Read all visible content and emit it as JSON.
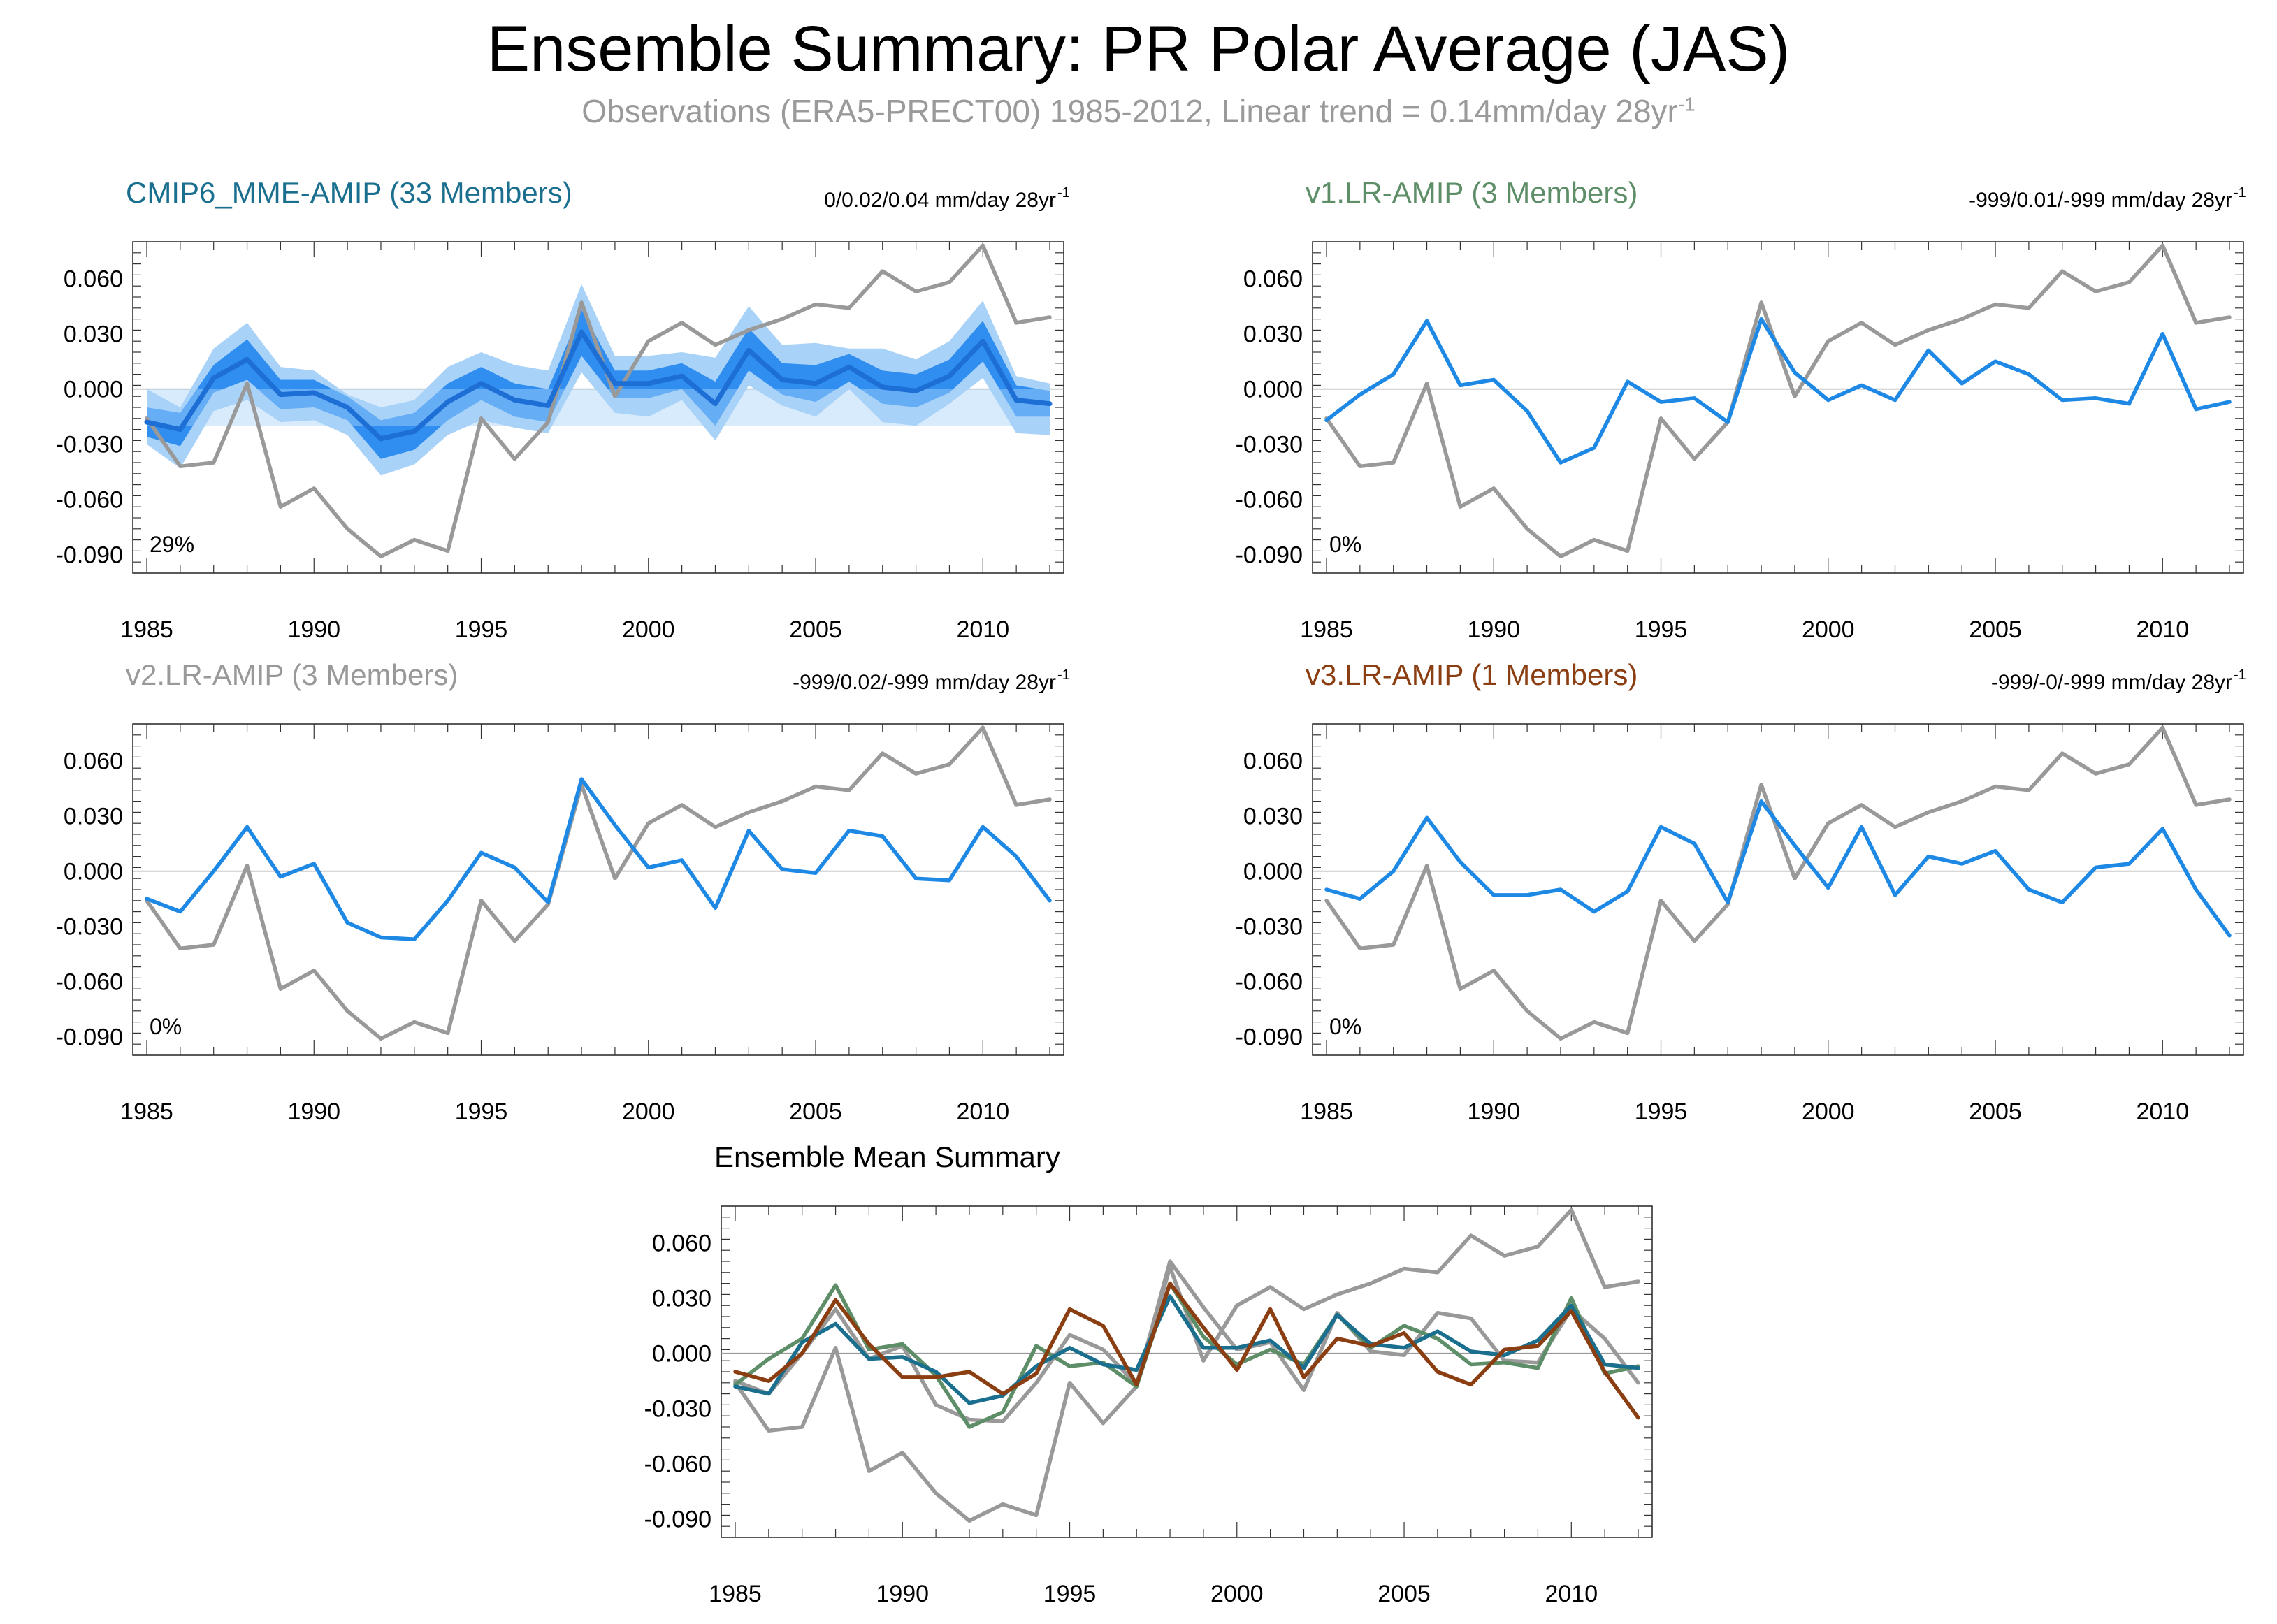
{
  "title": "Ensemble Summary: PR Polar Average (JAS)",
  "subtitle": {
    "text": "Observations (ERA5-PRECT00) 1985-2012, Linear trend = 0.14mm/day 28yr",
    "sup": "-1"
  },
  "colors": {
    "obs": "#999999",
    "model_line": "#1e88e5",
    "band_outer": "#a9d2f8",
    "band_inner": "#2f8ef0",
    "ens_mean": "#1d6fd6",
    "cmip_title": "#1a6e8e",
    "v1_title": "#5e8e68",
    "v2_title": "#999999",
    "v3_title": "#8b3e12"
  },
  "chart_data": [
    {
      "id": "cmip6",
      "type": "line",
      "title": "CMIP6_MME-AMIP (33 Members)",
      "title_color": "#1a6e8e",
      "stats": "0/0.02/0.04 mm/day 28yr",
      "stats_sup": "-1",
      "percent": "29%",
      "x": [
        1985,
        1986,
        1987,
        1988,
        1989,
        1990,
        1991,
        1992,
        1993,
        1994,
        1995,
        1996,
        1997,
        1998,
        1999,
        2000,
        2001,
        2002,
        2003,
        2004,
        2005,
        2006,
        2007,
        2008,
        2009,
        2010,
        2011,
        2012
      ],
      "xticks": [
        "1985",
        "1990",
        "1995",
        "2000",
        "2005",
        "2010"
      ],
      "yticks": [
        "0.060",
        "0.030",
        "0.000",
        "-0.030",
        "-0.060",
        "-0.090"
      ],
      "ylim": [
        -0.1,
        0.08
      ],
      "series": [
        {
          "name": "Observations",
          "color": "#999999",
          "values": [
            -0.016,
            -0.042,
            -0.04,
            0.003,
            -0.064,
            -0.054,
            -0.076,
            -0.091,
            -0.082,
            -0.088,
            -0.016,
            -0.038,
            -0.018,
            0.047,
            -0.004,
            0.026,
            0.036,
            0.024,
            0.032,
            0.038,
            0.046,
            0.044,
            0.064,
            0.053,
            0.058,
            0.078,
            0.036,
            0.039
          ]
        },
        {
          "name": "Ensemble Mean",
          "color": "#1d6fd6",
          "values": [
            -0.018,
            -0.022,
            0.006,
            0.016,
            -0.003,
            -0.002,
            -0.01,
            -0.027,
            -0.023,
            -0.007,
            0.003,
            -0.006,
            -0.009,
            0.031,
            0.003,
            0.003,
            0.007,
            -0.008,
            0.021,
            0.005,
            0.003,
            0.012,
            0.001,
            -0.001,
            0.007,
            0.026,
            -0.006,
            -0.008
          ]
        }
      ],
      "band_outer": {
        "upper": [
          0.0,
          -0.01,
          0.022,
          0.036,
          0.012,
          0.01,
          -0.003,
          -0.01,
          -0.006,
          0.012,
          0.02,
          0.013,
          0.01,
          0.057,
          0.018,
          0.018,
          0.02,
          0.017,
          0.045,
          0.024,
          0.025,
          0.022,
          0.022,
          0.016,
          0.026,
          0.048,
          0.007,
          0.003
        ],
        "lower": [
          -0.03,
          -0.043,
          -0.012,
          -0.006,
          -0.018,
          -0.017,
          -0.025,
          -0.047,
          -0.041,
          -0.025,
          -0.017,
          -0.021,
          -0.024,
          0.009,
          -0.013,
          -0.015,
          -0.006,
          -0.028,
          0.002,
          -0.009,
          -0.015,
          0.0,
          -0.018,
          -0.02,
          -0.008,
          0.006,
          -0.024,
          -0.025
        ]
      },
      "band_inner": {
        "upper": [
          -0.01,
          -0.013,
          0.013,
          0.027,
          0.005,
          0.005,
          -0.004,
          -0.017,
          -0.013,
          0.003,
          0.012,
          0.003,
          0.0,
          0.043,
          0.01,
          0.01,
          0.014,
          0.004,
          0.033,
          0.014,
          0.013,
          0.019,
          0.01,
          0.008,
          0.016,
          0.037,
          0.002,
          -0.001
        ],
        "lower": [
          -0.026,
          -0.031,
          -0.002,
          0.005,
          -0.011,
          -0.01,
          -0.017,
          -0.038,
          -0.033,
          -0.017,
          -0.006,
          -0.015,
          -0.018,
          0.018,
          -0.005,
          -0.005,
          0.0,
          -0.02,
          0.01,
          -0.003,
          -0.007,
          0.004,
          -0.008,
          -0.01,
          -0.002,
          0.015,
          -0.015,
          -0.015
        ]
      }
    },
    {
      "id": "v1",
      "type": "line",
      "title": "v1.LR-AMIP (3 Members)",
      "title_color": "#5e8e68",
      "stats": "-999/0.01/-999 mm/day 28yr",
      "stats_sup": "-1",
      "percent": "0%",
      "x": [
        1985,
        1986,
        1987,
        1988,
        1989,
        1990,
        1991,
        1992,
        1993,
        1994,
        1995,
        1996,
        1997,
        1998,
        1999,
        2000,
        2001,
        2002,
        2003,
        2004,
        2005,
        2006,
        2007,
        2008,
        2009,
        2010,
        2011,
        2012
      ],
      "xticks": [
        "1985",
        "1990",
        "1995",
        "2000",
        "2005",
        "2010"
      ],
      "yticks": [
        "0.060",
        "0.030",
        "0.000",
        "-0.030",
        "-0.060",
        "-0.090"
      ],
      "ylim": [
        -0.1,
        0.08
      ],
      "series": [
        {
          "name": "Observations",
          "color": "#999999",
          "values": [
            -0.016,
            -0.042,
            -0.04,
            0.003,
            -0.064,
            -0.054,
            -0.076,
            -0.091,
            -0.082,
            -0.088,
            -0.016,
            -0.038,
            -0.018,
            0.047,
            -0.004,
            0.026,
            0.036,
            0.024,
            0.032,
            0.038,
            0.046,
            0.044,
            0.064,
            0.053,
            0.058,
            0.078,
            0.036,
            0.039
          ]
        },
        {
          "name": "Ensemble Mean",
          "color": "#1e88e5",
          "values": [
            -0.017,
            -0.003,
            0.008,
            0.037,
            0.002,
            0.005,
            -0.012,
            -0.04,
            -0.032,
            0.004,
            -0.007,
            -0.005,
            -0.018,
            0.038,
            0.009,
            -0.006,
            0.002,
            -0.006,
            0.021,
            0.003,
            0.015,
            0.008,
            -0.006,
            -0.005,
            -0.008,
            0.03,
            -0.011,
            -0.007
          ]
        }
      ]
    },
    {
      "id": "v2",
      "type": "line",
      "title": "v2.LR-AMIP (3 Members)",
      "title_color": "#999999",
      "stats": "-999/0.02/-999 mm/day 28yr",
      "stats_sup": "-1",
      "percent": "0%",
      "x": [
        1985,
        1986,
        1987,
        1988,
        1989,
        1990,
        1991,
        1992,
        1993,
        1994,
        1995,
        1996,
        1997,
        1998,
        1999,
        2000,
        2001,
        2002,
        2003,
        2004,
        2005,
        2006,
        2007,
        2008,
        2009,
        2010,
        2011,
        2012
      ],
      "xticks": [
        "1985",
        "1990",
        "1995",
        "2000",
        "2005",
        "2010"
      ],
      "yticks": [
        "0.060",
        "0.030",
        "0.000",
        "-0.030",
        "-0.060",
        "-0.090"
      ],
      "ylim": [
        -0.1,
        0.08
      ],
      "series": [
        {
          "name": "Observations",
          "color": "#999999",
          "values": [
            -0.016,
            -0.042,
            -0.04,
            0.003,
            -0.064,
            -0.054,
            -0.076,
            -0.091,
            -0.082,
            -0.088,
            -0.016,
            -0.038,
            -0.018,
            0.047,
            -0.004,
            0.026,
            0.036,
            0.024,
            0.032,
            0.038,
            0.046,
            0.044,
            0.064,
            0.053,
            0.058,
            0.078,
            0.036,
            0.039
          ]
        },
        {
          "name": "Ensemble Mean",
          "color": "#1e88e5",
          "values": [
            -0.015,
            -0.022,
            0.0,
            0.024,
            -0.003,
            0.004,
            -0.028,
            -0.036,
            -0.037,
            -0.016,
            0.01,
            0.002,
            -0.017,
            0.05,
            0.025,
            0.002,
            0.006,
            -0.02,
            0.022,
            0.001,
            -0.001,
            0.022,
            0.019,
            -0.004,
            -0.005,
            0.024,
            0.008,
            -0.016
          ]
        }
      ]
    },
    {
      "id": "v3",
      "type": "line",
      "title": "v3.LR-AMIP (1 Members)",
      "title_color": "#8b3e12",
      "stats": "-999/-0/-999 mm/day 28yr",
      "stats_sup": "-1",
      "percent": "0%",
      "x": [
        1985,
        1986,
        1987,
        1988,
        1989,
        1990,
        1991,
        1992,
        1993,
        1994,
        1995,
        1996,
        1997,
        1998,
        1999,
        2000,
        2001,
        2002,
        2003,
        2004,
        2005,
        2006,
        2007,
        2008,
        2009,
        2010,
        2011,
        2012
      ],
      "xticks": [
        "1985",
        "1990",
        "1995",
        "2000",
        "2005",
        "2010"
      ],
      "yticks": [
        "0.060",
        "0.030",
        "0.000",
        "-0.030",
        "-0.060",
        "-0.090"
      ],
      "ylim": [
        -0.1,
        0.08
      ],
      "series": [
        {
          "name": "Observations",
          "color": "#999999",
          "values": [
            -0.016,
            -0.042,
            -0.04,
            0.003,
            -0.064,
            -0.054,
            -0.076,
            -0.091,
            -0.082,
            -0.088,
            -0.016,
            -0.038,
            -0.018,
            0.047,
            -0.004,
            0.026,
            0.036,
            0.024,
            0.032,
            0.038,
            0.046,
            0.044,
            0.064,
            0.053,
            0.058,
            0.078,
            0.036,
            0.039
          ]
        },
        {
          "name": "Ensemble Mean",
          "color": "#1e88e5",
          "values": [
            -0.01,
            -0.015,
            0.0,
            0.029,
            0.005,
            -0.013,
            -0.013,
            -0.01,
            -0.022,
            -0.011,
            0.024,
            0.015,
            -0.017,
            0.038,
            0.014,
            -0.009,
            0.024,
            -0.013,
            0.008,
            0.004,
            0.011,
            -0.01,
            -0.017,
            0.002,
            0.004,
            0.023,
            -0.01,
            -0.035
          ]
        }
      ]
    },
    {
      "id": "mean",
      "type": "line",
      "title": "Ensemble Mean Summary",
      "title_color": "#000000",
      "x": [
        1985,
        1986,
        1987,
        1988,
        1989,
        1990,
        1991,
        1992,
        1993,
        1994,
        1995,
        1996,
        1997,
        1998,
        1999,
        2000,
        2001,
        2002,
        2003,
        2004,
        2005,
        2006,
        2007,
        2008,
        2009,
        2010,
        2011,
        2012
      ],
      "xticks": [
        "1985",
        "1990",
        "1995",
        "2000",
        "2005",
        "2010"
      ],
      "yticks": [
        "0.060",
        "0.030",
        "0.000",
        "-0.030",
        "-0.060",
        "-0.090"
      ],
      "ylim": [
        -0.1,
        0.08
      ],
      "series": [
        {
          "name": "Observations",
          "color": "#999999",
          "values": [
            -0.016,
            -0.042,
            -0.04,
            0.003,
            -0.064,
            -0.054,
            -0.076,
            -0.091,
            -0.082,
            -0.088,
            -0.016,
            -0.038,
            -0.018,
            0.047,
            -0.004,
            0.026,
            0.036,
            0.024,
            0.032,
            0.038,
            0.046,
            0.044,
            0.064,
            0.053,
            0.058,
            0.078,
            0.036,
            0.039
          ]
        },
        {
          "name": "v2.LR-AMIP",
          "color": "#999999",
          "values": [
            -0.015,
            -0.022,
            0.0,
            0.024,
            -0.003,
            0.004,
            -0.028,
            -0.036,
            -0.037,
            -0.016,
            0.01,
            0.002,
            -0.017,
            0.05,
            0.025,
            0.002,
            0.006,
            -0.02,
            0.022,
            0.001,
            -0.001,
            0.022,
            0.019,
            -0.004,
            -0.005,
            0.024,
            0.008,
            -0.016
          ]
        },
        {
          "name": "v1.LR-AMIP",
          "color": "#5e8e68",
          "values": [
            -0.017,
            -0.003,
            0.008,
            0.037,
            0.002,
            0.005,
            -0.012,
            -0.04,
            -0.032,
            0.004,
            -0.007,
            -0.005,
            -0.018,
            0.038,
            0.009,
            -0.006,
            0.002,
            -0.006,
            0.021,
            0.003,
            0.015,
            0.008,
            -0.006,
            -0.005,
            -0.008,
            0.03,
            -0.011,
            -0.007
          ]
        },
        {
          "name": "CMIP6_MME-AMIP",
          "color": "#1a6e8e",
          "values": [
            -0.018,
            -0.022,
            0.006,
            0.016,
            -0.003,
            -0.002,
            -0.01,
            -0.027,
            -0.023,
            -0.007,
            0.003,
            -0.006,
            -0.009,
            0.031,
            0.003,
            0.003,
            0.007,
            -0.008,
            0.021,
            0.005,
            0.003,
            0.012,
            0.001,
            -0.001,
            0.007,
            0.026,
            -0.006,
            -0.008
          ]
        },
        {
          "name": "v3.LR-AMIP",
          "color": "#8b3e12",
          "values": [
            -0.01,
            -0.015,
            0.0,
            0.029,
            0.005,
            -0.013,
            -0.013,
            -0.01,
            -0.022,
            -0.011,
            0.024,
            0.015,
            -0.017,
            0.038,
            0.014,
            -0.009,
            0.024,
            -0.013,
            0.008,
            0.004,
            0.011,
            -0.01,
            -0.017,
            0.002,
            0.004,
            0.023,
            -0.01,
            -0.035
          ]
        }
      ]
    }
  ]
}
